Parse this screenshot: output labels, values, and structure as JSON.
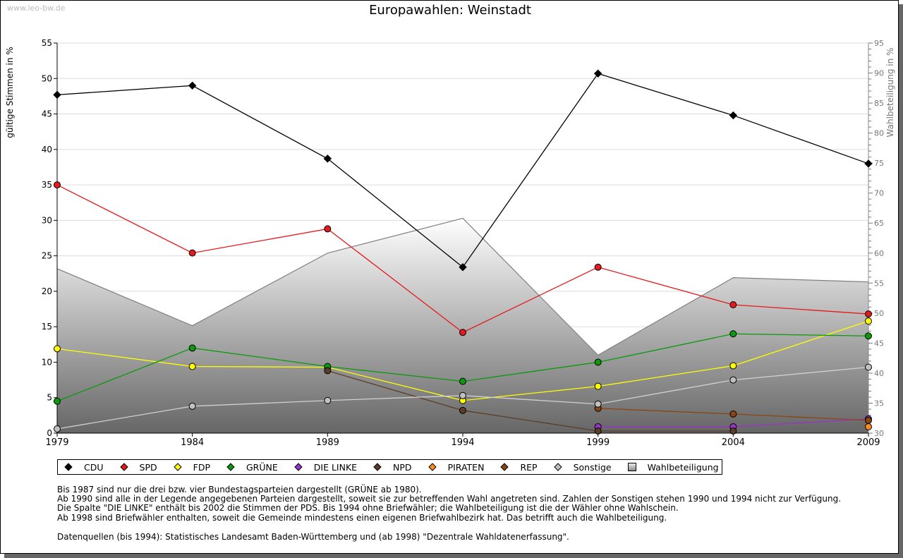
{
  "watermark": "www.leo-bw.de",
  "chart_data": {
    "type": "line",
    "title": "Europawahlen: Weinstadt",
    "ylabel": "gültige Stimmen in %",
    "y2label": "Wahlbeteiligung in %",
    "x": [
      1979,
      1984,
      1989,
      1994,
      1999,
      2004,
      2009
    ],
    "xtick_labels": [
      "1979",
      "1984",
      "1989",
      "1994",
      "1999",
      "2004",
      "2009"
    ],
    "ylim": [
      0,
      55
    ],
    "yticks": [
      "0",
      "5",
      "10",
      "15",
      "20",
      "25",
      "30",
      "35",
      "40",
      "45",
      "50",
      "55"
    ],
    "y2lim": [
      30,
      95
    ],
    "y2ticks": [
      "30",
      "35",
      "40",
      "45",
      "50",
      "55",
      "60",
      "65",
      "70",
      "75",
      "80",
      "85",
      "90",
      "95"
    ],
    "grid": true,
    "legend_position": "bottom",
    "series": [
      {
        "name": "CDU",
        "color": "#000000",
        "values": [
          47.7,
          49.0,
          38.7,
          23.4,
          50.7,
          44.8,
          38.0
        ]
      },
      {
        "name": "SPD",
        "color": "#e41a1c",
        "values": [
          35.0,
          25.4,
          28.8,
          14.2,
          23.4,
          18.1,
          16.8
        ]
      },
      {
        "name": "FDP",
        "color": "#ffff00",
        "values": [
          11.9,
          9.4,
          9.3,
          4.6,
          6.6,
          9.5,
          15.8
        ]
      },
      {
        "name": "GRÜNE",
        "color": "#0b9a0b",
        "values": [
          4.5,
          12.0,
          9.4,
          7.3,
          10.0,
          14.0,
          13.7
        ]
      },
      {
        "name": "DIE LINKE",
        "color": "#9933cc",
        "values": [
          null,
          null,
          null,
          null,
          0.9,
          0.9,
          2.0
        ]
      },
      {
        "name": "NPD",
        "color": "#5c3d26",
        "values": [
          null,
          null,
          8.8,
          3.2,
          0.3,
          0.3,
          null
        ]
      },
      {
        "name": "PIRATEN",
        "color": "#ff8c1a",
        "values": [
          null,
          null,
          null,
          null,
          null,
          null,
          0.9
        ]
      },
      {
        "name": "REP",
        "color": "#8b4513",
        "values": [
          null,
          null,
          null,
          null,
          3.5,
          2.7,
          1.8
        ]
      },
      {
        "name": "Sonstige",
        "color": "#c0c0c0",
        "values": [
          0.6,
          3.8,
          4.6,
          5.3,
          4.1,
          7.5,
          9.3
        ]
      }
    ],
    "area_series": {
      "name": "Wahlbeteiligung",
      "axis": "right",
      "values": [
        57.4,
        47.9,
        60.0,
        65.8,
        43.0,
        55.9,
        55.2
      ]
    }
  },
  "legend": [
    "CDU",
    "SPD",
    "FDP",
    "GRÜNE",
    "DIE LINKE",
    "NPD",
    "PIRATEN",
    "REP",
    "Sonstige",
    "Wahlbeteiligung"
  ],
  "notes": [
    "Bis 1987 sind nur die drei bzw. vier Bundestagsparteien dargestellt (GRÜNE ab 1980).",
    "Ab 1990 sind alle in der Legende angegebenen Parteien dargestellt, soweit sie zur betreffenden Wahl angetreten sind. Zahlen der Sonstigen stehen 1990 und 1994 nicht zur Verfügung.",
    "Die Spalte \"DIE LINKE\" enthält bis 2002 die Stimmen der PDS. Bis 1994 ohne Briefwähler; die Wahlbeteiligung ist die der Wähler ohne Wahlschein.",
    "Ab 1998 sind Briefwähler enthalten, soweit die Gemeinde mindestens einen eigenen Briefwahlbezirk hat. Das betrifft auch die Wahlbeteiligung."
  ],
  "source": "Datenquellen (bis 1994): Statistisches Landesamt Baden-Württemberg und (ab 1998) \"Dezentrale Wahldatenerfassung\"."
}
